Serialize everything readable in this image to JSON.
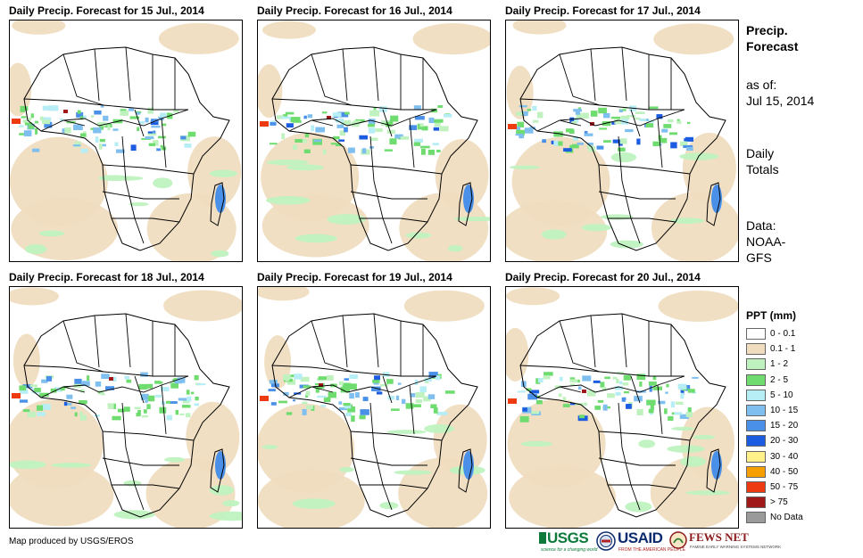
{
  "panels": [
    {
      "title": "Daily Precip. Forecast for 15 Jul., 2014"
    },
    {
      "title": "Daily Precip. Forecast for 16 Jul., 2014"
    },
    {
      "title": "Daily Precip. Forecast for 17 Jul., 2014"
    },
    {
      "title": "Daily Precip. Forecast for 18 Jul., 2014"
    },
    {
      "title": "Daily Precip. Forecast for 19 Jul., 2014"
    },
    {
      "title": "Daily Precip. Forecast for 20 Jul., 2014"
    }
  ],
  "sidebar": {
    "heading_line1": "Precip.",
    "heading_line2": "Forecast",
    "asof_label": "as of:",
    "asof_date": "Jul 15, 2014",
    "totals_line1": "Daily",
    "totals_line2": "Totals",
    "data_label": "Data:",
    "data_source_line1": "NOAA-",
    "data_source_line2": "GFS"
  },
  "legend": {
    "title": "PPT (mm)",
    "items": [
      {
        "label": "0 - 0.1",
        "color": "#ffffff"
      },
      {
        "label": "0.1 - 1",
        "color": "#f0dcbe"
      },
      {
        "label": "1 - 2",
        "color": "#bff2bf"
      },
      {
        "label": "2 - 5",
        "color": "#6fdc6f"
      },
      {
        "label": "5 - 10",
        "color": "#b7eef5"
      },
      {
        "label": "10 - 15",
        "color": "#7fbff0"
      },
      {
        "label": "15 - 20",
        "color": "#4a90e8"
      },
      {
        "label": "20 - 30",
        "color": "#1c5ce0"
      },
      {
        "label": "30 - 40",
        "color": "#fff08a"
      },
      {
        "label": "40 - 50",
        "color": "#f5a000"
      },
      {
        "label": "50 - 75",
        "color": "#ee3a10"
      },
      {
        "label": "> 75",
        "color": "#a01818"
      },
      {
        "label": "No Data",
        "color": "#9a9a9a"
      }
    ]
  },
  "credit": "Map produced by USGS/EROS",
  "logos": {
    "usgs": "USGS",
    "usgs_tagline": "science for a changing world",
    "usaid": "USAID",
    "usaid_tagline": "FROM THE AMERICAN PEOPLE",
    "fews": "FEWS NET",
    "fews_tagline": "FAMINE EARLY WARNING SYSTEMS NETWORK"
  }
}
